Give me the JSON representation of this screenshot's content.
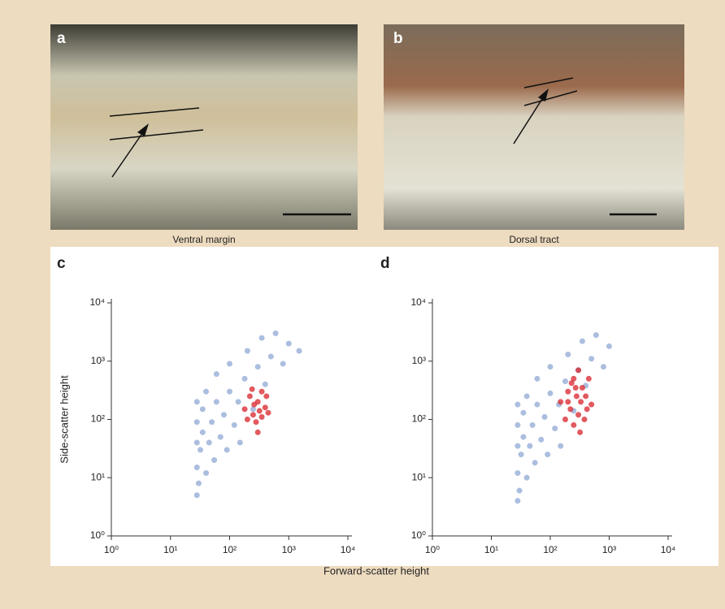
{
  "panels": [
    {
      "label": "a",
      "caption": "Ventral margin"
    },
    {
      "label": "b",
      "caption": "Dorsal tract"
    }
  ],
  "xlabel": "Forward-scatter height",
  "chart_data": [
    {
      "type": "scatter",
      "label": "c",
      "ylabel": "Side-scatter height",
      "log_scale": true,
      "xlim": [
        1,
        10000
      ],
      "ylim": [
        1,
        10000
      ],
      "xticks": [
        {
          "value": 1,
          "label": "10⁰"
        },
        {
          "value": 10,
          "label": "10¹"
        },
        {
          "value": 100,
          "label": "10²"
        },
        {
          "value": 1000,
          "label": "10³"
        },
        {
          "value": 10000,
          "label": "10⁴"
        }
      ],
      "yticks": [
        {
          "value": 1,
          "label": "10⁰"
        },
        {
          "value": 10,
          "label": "10¹"
        },
        {
          "value": 100,
          "label": "10²"
        },
        {
          "value": 1000,
          "label": "10³"
        },
        {
          "value": 10000,
          "label": "10⁴"
        }
      ],
      "series": [
        {
          "color": "#8fa8d4",
          "x": [
            28,
            28,
            28,
            28,
            28,
            30,
            32,
            35,
            35,
            40,
            40,
            45,
            50,
            55,
            60,
            60,
            70,
            80,
            90,
            100,
            100,
            120,
            140,
            150,
            180,
            200,
            250,
            300,
            350,
            400,
            500,
            600,
            800,
            1000,
            1500
          ],
          "y": [
            5,
            15,
            40,
            90,
            200,
            8,
            30,
            60,
            150,
            12,
            300,
            40,
            90,
            20,
            200,
            600,
            50,
            120,
            30,
            300,
            900,
            80,
            200,
            40,
            500,
            1500,
            150,
            800,
            2500,
            400,
            1200,
            3000,
            900,
            2000,
            1500
          ]
        },
        {
          "color": "#d8232a",
          "x": [
            180,
            200,
            220,
            250,
            260,
            280,
            300,
            320,
            350,
            350,
            400,
            420,
            450,
            300,
            240
          ],
          "y": [
            150,
            100,
            250,
            120,
            180,
            90,
            200,
            140,
            300,
            110,
            160,
            250,
            130,
            60,
            330
          ]
        }
      ]
    },
    {
      "type": "scatter",
      "label": "d",
      "log_scale": true,
      "xlim": [
        1,
        10000
      ],
      "ylim": [
        1,
        10000
      ],
      "xticks": [
        {
          "value": 1,
          "label": "10⁰"
        },
        {
          "value": 10,
          "label": "10¹"
        },
        {
          "value": 100,
          "label": "10²"
        },
        {
          "value": 1000,
          "label": "10³"
        },
        {
          "value": 10000,
          "label": "10⁴"
        }
      ],
      "yticks": [
        {
          "value": 1,
          "label": "10⁰"
        },
        {
          "value": 10,
          "label": "10¹"
        },
        {
          "value": 100,
          "label": "10²"
        },
        {
          "value": 1000,
          "label": "10³"
        },
        {
          "value": 10000,
          "label": "10⁴"
        }
      ],
      "series": [
        {
          "color": "#8fa8d4",
          "x": [
            28,
            28,
            28,
            28,
            28,
            30,
            32,
            35,
            35,
            40,
            40,
            45,
            50,
            55,
            60,
            60,
            70,
            80,
            90,
            100,
            100,
            120,
            140,
            150,
            180,
            200,
            250,
            300,
            350,
            400,
            500,
            600,
            800,
            1000
          ],
          "y": [
            4,
            12,
            35,
            80,
            180,
            6,
            25,
            50,
            130,
            10,
            250,
            35,
            80,
            18,
            180,
            500,
            45,
            110,
            25,
            280,
            800,
            70,
            180,
            35,
            450,
            1300,
            140,
            700,
            2200,
            380,
            1100,
            2800,
            800,
            1800
          ]
        },
        {
          "color": "#d8232a",
          "x": [
            150,
            180,
            200,
            220,
            250,
            250,
            280,
            300,
            300,
            330,
            350,
            380,
            400,
            450,
            500,
            200,
            270,
            320,
            420,
            230
          ],
          "y": [
            200,
            100,
            300,
            150,
            500,
            80,
            250,
            120,
            700,
            200,
            350,
            100,
            250,
            500,
            180,
            200,
            350,
            60,
            150,
            420
          ]
        }
      ]
    }
  ]
}
